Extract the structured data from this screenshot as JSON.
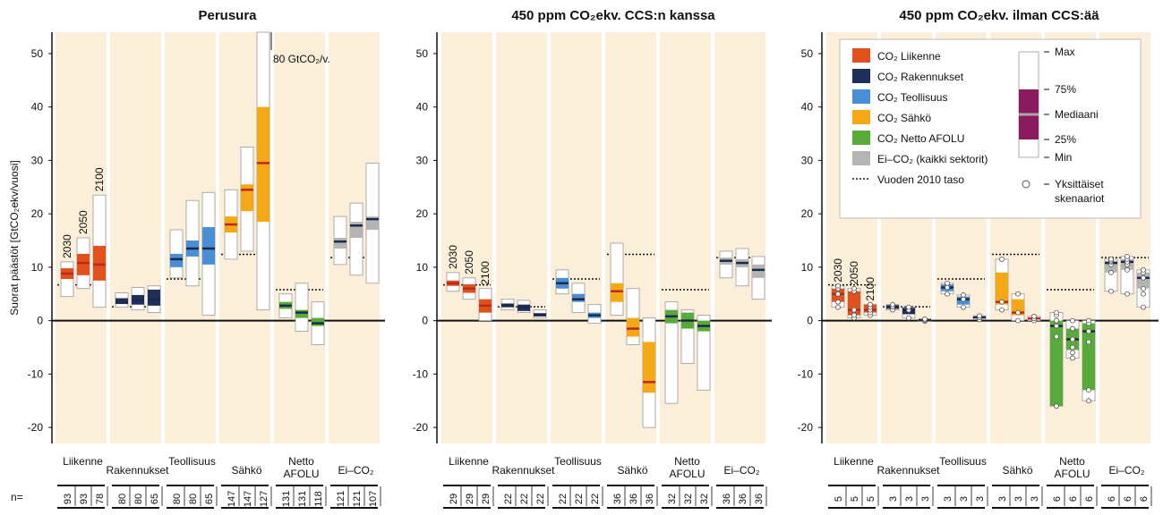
{
  "figure": {
    "ylabel": "Suorat päästöt [GtCO₂ekv/vuosi]",
    "yticks": [
      -20,
      -10,
      0,
      10,
      20,
      30,
      40,
      50
    ],
    "ylim": [
      -23,
      54
    ],
    "n_label": "n=",
    "year_labels": [
      "2030",
      "2050",
      "2100"
    ]
  },
  "colors": {
    "panel_bg": "#fbefd9",
    "Liikenne": "#e0511e",
    "Rakennukset": "#1f2f5c",
    "Teollisuus": "#4a8ed6",
    "Sähkö": "#f5a815",
    "Netto AFOLU": "#58ab3b",
    "Ei-CO2": "#b4b4b4",
    "legend_box": "#8b1a5e",
    "median_white": "#ffffff"
  },
  "legend": {
    "items": [
      {
        "key": "Liikenne",
        "label": "CO₂ Liikenne"
      },
      {
        "key": "Rakennukset",
        "label": "CO₂ Rakennukset"
      },
      {
        "key": "Teollisuus",
        "label": "CO₂ Teollisuus"
      },
      {
        "key": "Sähkö",
        "label": "CO₂ Sähkö"
      },
      {
        "key": "Netto AFOLU",
        "label": "CO₂ Netto AFOLU"
      },
      {
        "key": "Ei-CO2",
        "label": "Ei–CO₂ (kaikki sektorit)"
      }
    ],
    "level_label": "Vuoden 2010 taso",
    "box_labels": [
      "Max",
      "75%",
      "Mediaani",
      "25%",
      "Min"
    ],
    "individual_label": [
      "Yksittäiset",
      "skenaariot"
    ]
  },
  "chart_data": [
    {
      "type": "boxplot",
      "title": "Perusura",
      "ylim": [
        -23,
        54
      ],
      "annotation": "80 GtCO₂/v.",
      "categories": [
        {
          "key": "Liikenne",
          "label": [
            "Liikenne"
          ],
          "level2010": 6.7,
          "boxes": [
            {
              "n": 93,
              "min": 4.5,
              "q1": 7.8,
              "median": 8.8,
              "q3": 9.8,
              "max": 11.0
            },
            {
              "n": 93,
              "min": 6.0,
              "q1": 8.5,
              "median": 10.8,
              "q3": 12.5,
              "max": 15.5
            },
            {
              "n": 78,
              "min": 2.5,
              "q1": 7.5,
              "median": 10.5,
              "q3": 14.0,
              "max": 23.5
            }
          ]
        },
        {
          "key": "Rakennukset",
          "label": [
            "Rakennukset"
          ],
          "level2010": 2.6,
          "boxes": [
            {
              "n": 80,
              "min": 2.5,
              "q1": 3.1,
              "median": 3.5,
              "q3": 4.2,
              "max": 5.2
            },
            {
              "n": 80,
              "min": 2.0,
              "q1": 3.0,
              "median": 3.8,
              "q3": 4.8,
              "max": 6.2
            },
            {
              "n": 65,
              "min": 1.5,
              "q1": 2.8,
              "median": 4.0,
              "q3": 5.8,
              "max": 6.5
            }
          ]
        },
        {
          "key": "Teollisuus",
          "label": [
            "Teollisuus"
          ],
          "level2010": 7.8,
          "boxes": [
            {
              "n": 80,
              "min": 8.0,
              "q1": 10.0,
              "median": 11.5,
              "q3": 12.5,
              "max": 17.0
            },
            {
              "n": 80,
              "min": 6.5,
              "q1": 12.0,
              "median": 13.5,
              "q3": 15.0,
              "max": 22.5
            },
            {
              "n": 65,
              "min": 1.0,
              "q1": 10.5,
              "median": 13.5,
              "q3": 17.5,
              "max": 24.0
            }
          ]
        },
        {
          "key": "Sähkö",
          "label": [
            "Sähkö"
          ],
          "level2010": 12.4,
          "boxes": [
            {
              "n": 147,
              "min": 11.5,
              "q1": 16.5,
              "median": 18.0,
              "q3": 19.5,
              "max": 24.5
            },
            {
              "n": 147,
              "min": 13.0,
              "q1": 20.5,
              "median": 24.5,
              "q3": 25.5,
              "max": 32.5
            },
            {
              "n": 127,
              "min": 2.0,
              "q1": 18.5,
              "median": 29.5,
              "q3": 40.0,
              "max": 54.0
            }
          ]
        },
        {
          "key": "Netto AFOLU",
          "label": [
            "Netto",
            "AFOLU"
          ],
          "level2010": 5.8,
          "boxes": [
            {
              "n": 131,
              "min": 0.5,
              "q1": 2.2,
              "median": 2.8,
              "q3": 3.5,
              "max": 5.0
            },
            {
              "n": 131,
              "min": -2.0,
              "q1": 0.5,
              "median": 1.5,
              "q3": 2.0,
              "max": 7.0
            },
            {
              "n": 118,
              "min": -4.5,
              "q1": -1.0,
              "median": -0.5,
              "q3": 0.5,
              "max": 3.5
            }
          ]
        },
        {
          "key": "Ei-CO2",
          "label": [
            "Ei–CO₂"
          ],
          "level2010": 11.8,
          "boxes": [
            {
              "n": 121,
              "min": 10.5,
              "q1": 13.5,
              "median": 14.8,
              "q3": 15.5,
              "max": 19.5
            },
            {
              "n": 121,
              "min": 8.5,
              "q1": 15.5,
              "median": 17.8,
              "q3": 18.5,
              "max": 22.0
            },
            {
              "n": 107,
              "min": 7.0,
              "q1": 17.0,
              "median": 19.0,
              "q3": 19.5,
              "max": 29.5
            }
          ]
        }
      ]
    },
    {
      "type": "boxplot",
      "title": "450 ppm CO₂ekv. CCS:n kanssa",
      "ylim": [
        -23,
        54
      ],
      "categories": [
        {
          "key": "Liikenne",
          "label": [
            "Liikenne"
          ],
          "level2010": 6.7,
          "boxes": [
            {
              "n": 29,
              "min": 5.5,
              "q1": 6.5,
              "median": 7.0,
              "q3": 7.5,
              "max": 9.0
            },
            {
              "n": 29,
              "min": 4.0,
              "q1": 5.2,
              "median": 6.0,
              "q3": 6.8,
              "max": 8.0
            },
            {
              "n": 29,
              "min": 0.0,
              "q1": 1.5,
              "median": 2.8,
              "q3": 4.0,
              "max": 6.0
            }
          ]
        },
        {
          "key": "Rakennukset",
          "label": [
            "Rakennukset"
          ],
          "level2010": 2.6,
          "boxes": [
            {
              "n": 22,
              "min": 2.0,
              "q1": 2.5,
              "median": 2.8,
              "q3": 3.2,
              "max": 4.0
            },
            {
              "n": 22,
              "min": 1.5,
              "q1": 1.8,
              "median": 2.5,
              "q3": 3.0,
              "max": 3.8
            },
            {
              "n": 22,
              "min": 0.5,
              "q1": 0.8,
              "median": 1.0,
              "q3": 1.4,
              "max": 2.0
            }
          ]
        },
        {
          "key": "Teollisuus",
          "label": [
            "Teollisuus"
          ],
          "level2010": 7.8,
          "boxes": [
            {
              "n": 22,
              "min": 5.0,
              "q1": 6.0,
              "median": 7.0,
              "q3": 8.0,
              "max": 9.5
            },
            {
              "n": 22,
              "min": 1.5,
              "q1": 3.5,
              "median": 4.0,
              "q3": 5.0,
              "max": 7.0
            },
            {
              "n": 22,
              "min": -0.5,
              "q1": 0.5,
              "median": 1.0,
              "q3": 1.5,
              "max": 3.0
            }
          ]
        },
        {
          "key": "Sähkö",
          "label": [
            "Sähkö"
          ],
          "level2010": 12.4,
          "boxes": [
            {
              "n": 36,
              "min": 1.0,
              "q1": 3.5,
              "median": 5.5,
              "q3": 7.0,
              "max": 14.5
            },
            {
              "n": 36,
              "min": -4.5,
              "q1": -3.0,
              "median": -1.5,
              "q3": 0.5,
              "max": 6.0
            },
            {
              "n": 36,
              "min": -20.0,
              "q1": -13.5,
              "median": -11.5,
              "q3": -4.0,
              "max": 0.5
            }
          ]
        },
        {
          "key": "Netto AFOLU",
          "label": [
            "Netto",
            "AFOLU"
          ],
          "level2010": 5.8,
          "boxes": [
            {
              "n": 32,
              "min": -15.5,
              "q1": -0.5,
              "median": 0.8,
              "q3": 2.0,
              "max": 3.5
            },
            {
              "n": 32,
              "min": -8.0,
              "q1": -1.5,
              "median": 0.0,
              "q3": 1.5,
              "max": 2.0
            },
            {
              "n": 32,
              "min": -13.0,
              "q1": -2.0,
              "median": -1.0,
              "q3": 0.0,
              "max": 1.0
            }
          ]
        },
        {
          "key": "Ei-CO2",
          "label": [
            "Ei–CO₂"
          ],
          "level2010": 11.8,
          "boxes": [
            {
              "n": 36,
              "min": 8.0,
              "q1": 10.5,
              "median": 11.2,
              "q3": 11.8,
              "max": 13.0
            },
            {
              "n": 36,
              "min": 6.5,
              "q1": 10.0,
              "median": 10.8,
              "q3": 11.5,
              "max": 13.5
            },
            {
              "n": 36,
              "min": 4.0,
              "q1": 8.0,
              "median": 9.5,
              "q3": 10.5,
              "max": 12.0
            }
          ]
        }
      ]
    },
    {
      "type": "boxplot",
      "title": "450 ppm CO₂ekv. ilman CCS:ää",
      "ylim": [
        -23,
        54
      ],
      "categories": [
        {
          "key": "Liikenne",
          "label": [
            "Liikenne"
          ],
          "level2010": 6.7,
          "boxes": [
            {
              "n": 5,
              "min": 2.5,
              "q1": 3.5,
              "median": 5.0,
              "q3": 6.0,
              "max": 6.5,
              "points": [
                2.5,
                3.5,
                5.0,
                6.0,
                6.5
              ]
            },
            {
              "n": 5,
              "min": 0.5,
              "q1": 1.0,
              "median": 2.0,
              "q3": 5.5,
              "max": 6.0,
              "points": [
                0.5,
                1.0,
                2.0,
                5.5,
                6.0
              ]
            },
            {
              "n": 5,
              "min": 1.0,
              "q1": 1.5,
              "median": 2.0,
              "q3": 3.0,
              "max": 3.0,
              "points": [
                1.0,
                1.5,
                2.0,
                2.5,
                3.0
              ]
            }
          ]
        },
        {
          "key": "Rakennukset",
          "label": [
            "Rakennukset"
          ],
          "level2010": 2.6,
          "boxes": [
            {
              "n": 3,
              "min": 2.0,
              "q1": 2.2,
              "median": 2.6,
              "q3": 2.9,
              "max": 3.0,
              "points": [
                2.0,
                2.6,
                3.0
              ]
            },
            {
              "n": 3,
              "min": 0.5,
              "q1": 1.2,
              "median": 2.0,
              "q3": 2.4,
              "max": 2.5,
              "points": [
                0.5,
                2.0,
                2.5
              ]
            },
            {
              "n": 3,
              "min": -0.1,
              "q1": 0.0,
              "median": 0.1,
              "q3": 0.2,
              "max": 0.3,
              "points": [
                -0.1,
                0.1,
                0.3
              ]
            }
          ]
        },
        {
          "key": "Teollisuus",
          "label": [
            "Teollisuus"
          ],
          "level2010": 7.8,
          "boxes": [
            {
              "n": 3,
              "min": 5.0,
              "q1": 5.5,
              "median": 6.2,
              "q3": 6.8,
              "max": 7.0,
              "points": [
                5.0,
                6.2,
                7.0
              ]
            },
            {
              "n": 3,
              "min": 2.5,
              "q1": 3.0,
              "median": 4.0,
              "q3": 4.5,
              "max": 4.8,
              "points": [
                2.5,
                4.0,
                4.8
              ]
            },
            {
              "n": 3,
              "min": 0.2,
              "q1": 0.4,
              "median": 0.6,
              "q3": 0.8,
              "max": 0.9,
              "points": [
                0.2,
                0.6,
                0.9
              ]
            }
          ]
        },
        {
          "key": "Sähkö",
          "label": [
            "Sähkö"
          ],
          "level2010": 12.4,
          "boxes": [
            {
              "n": 3,
              "min": 2.0,
              "q1": 3.0,
              "median": 3.5,
              "q3": 9.0,
              "max": 11.5,
              "points": [
                2.0,
                3.5,
                11.5
              ]
            },
            {
              "n": 3,
              "min": 0.0,
              "q1": 1.0,
              "median": 1.5,
              "q3": 4.0,
              "max": 5.0,
              "points": [
                0.0,
                1.5,
                5.0
              ]
            },
            {
              "n": 3,
              "min": 0.0,
              "q1": 0.2,
              "median": 0.4,
              "q3": 0.6,
              "max": 0.8,
              "points": [
                0.0,
                0.4,
                0.8
              ]
            }
          ]
        },
        {
          "key": "Netto AFOLU",
          "label": [
            "Netto",
            "AFOLU"
          ],
          "level2010": 5.8,
          "boxes": [
            {
              "n": 6,
              "min": -16.0,
              "q1": -16.0,
              "median": -1.0,
              "q3": 0.0,
              "max": 1.5,
              "points": [
                -16.0,
                -3.0,
                -1.0,
                0.0,
                1.0,
                1.5
              ]
            },
            {
              "n": 6,
              "min": -7.0,
              "q1": -5.5,
              "median": -3.5,
              "q3": -1.5,
              "max": 0.0,
              "points": [
                -7.0,
                -6.0,
                -5.0,
                -3.5,
                -1.5,
                0.0
              ]
            },
            {
              "n": 6,
              "min": -15.0,
              "q1": -13.0,
              "median": -2.0,
              "q3": -0.5,
              "max": 0.0,
              "points": [
                -15.0,
                -13.0,
                -4.0,
                -2.0,
                -0.5,
                0.0
              ]
            }
          ]
        },
        {
          "key": "Ei-CO2",
          "label": [
            "Ei–CO₂"
          ],
          "level2010": 11.8,
          "boxes": [
            {
              "n": 6,
              "min": 5.5,
              "q1": 9.0,
              "median": 10.8,
              "q3": 11.2,
              "max": 11.5,
              "points": [
                5.5,
                9.0,
                10.5,
                11.0,
                11.2,
                11.5
              ]
            },
            {
              "n": 6,
              "min": 5.0,
              "q1": 9.5,
              "median": 11.0,
              "q3": 11.5,
              "max": 12.0,
              "points": [
                5.0,
                9.5,
                10.5,
                11.0,
                11.5,
                12.0
              ]
            },
            {
              "n": 6,
              "min": 2.5,
              "q1": 6.0,
              "median": 8.0,
              "q3": 9.0,
              "max": 9.5,
              "points": [
                2.5,
                5.0,
                6.0,
                8.0,
                9.0,
                9.5
              ]
            }
          ]
        }
      ]
    }
  ]
}
